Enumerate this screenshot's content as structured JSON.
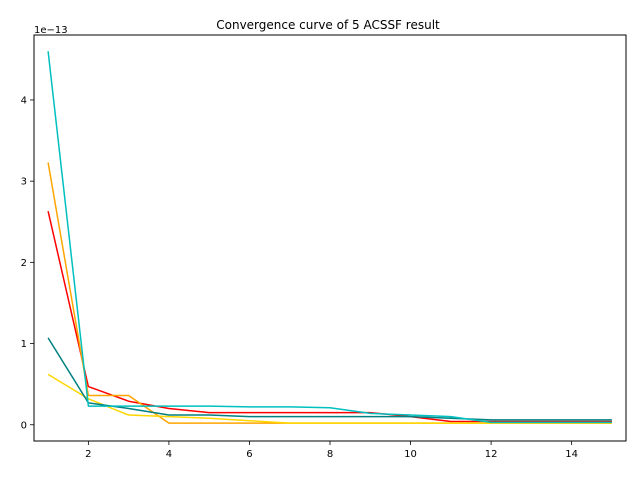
{
  "chart_data": {
    "type": "line",
    "title": "Convergence curve of 5 ACSSF result",
    "xlabel": "",
    "ylabel": "",
    "y_scale_label": "1e−13",
    "y_scale": 1e-13,
    "xlim": [
      0.65,
      15.35
    ],
    "ylim": [
      -0.2,
      4.8
    ],
    "x_ticks": [
      2,
      4,
      6,
      8,
      10,
      12,
      14
    ],
    "y_ticks": [
      0,
      1,
      2,
      3,
      4
    ],
    "x": [
      1,
      2,
      3,
      4,
      5,
      6,
      7,
      8,
      9,
      10,
      11,
      12,
      13,
      14,
      15
    ],
    "grid": false,
    "legend": "none",
    "series": [
      {
        "color": "#ff0000",
        "values": [
          2.63,
          0.47,
          0.29,
          0.2,
          0.15,
          0.15,
          0.15,
          0.15,
          0.15,
          0.1,
          0.04,
          0.04,
          0.04,
          0.04,
          0.04
        ]
      },
      {
        "color": "#ffa500",
        "values": [
          3.23,
          0.36,
          0.36,
          0.02,
          0.02,
          0.02,
          0.02,
          0.02,
          0.02,
          0.02,
          0.02,
          0.02,
          0.02,
          0.02,
          0.02
        ]
      },
      {
        "color": "#ffd700",
        "values": [
          0.62,
          0.32,
          0.12,
          0.1,
          0.08,
          0.05,
          0.02,
          0.02,
          0.02,
          0.02,
          0.02,
          0.02,
          0.02,
          0.02,
          0.02
        ]
      },
      {
        "color": "#008080",
        "values": [
          1.07,
          0.27,
          0.2,
          0.12,
          0.12,
          0.1,
          0.1,
          0.1,
          0.1,
          0.1,
          0.08,
          0.06,
          0.06,
          0.06,
          0.06
        ]
      },
      {
        "color": "#00bfbf",
        "values": [
          4.6,
          0.23,
          0.23,
          0.23,
          0.23,
          0.22,
          0.22,
          0.21,
          0.14,
          0.12,
          0.1,
          0.03,
          0.03,
          0.03,
          0.03
        ]
      }
    ]
  }
}
